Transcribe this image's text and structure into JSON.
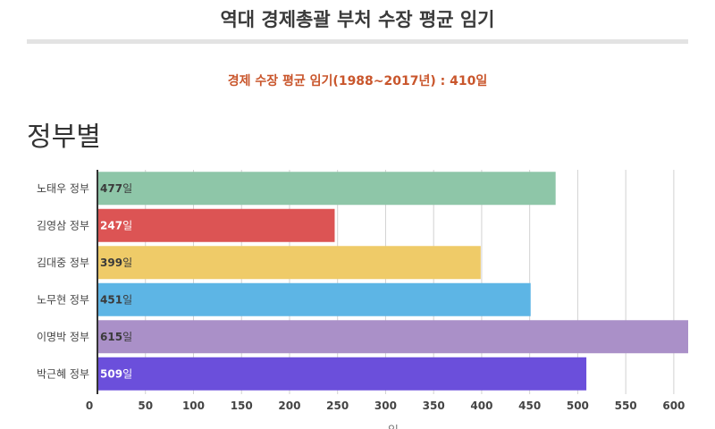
{
  "header": {
    "title": "역대 경제총괄 부처 수장 평균 임기",
    "average_note": "경제 수장 평균 임기(1988~2017년) : 410일",
    "section_title": "정부별"
  },
  "chart_data": {
    "type": "bar",
    "orientation": "horizontal",
    "categories": [
      "노태우 정부",
      "김영삼 정부",
      "김대중 정부",
      "노무현 정부",
      "이명박 정부",
      "박근혜 정부"
    ],
    "values": [
      477,
      247,
      399,
      451,
      615,
      509
    ],
    "value_suffix": "일",
    "colors": [
      "#8ec6a8",
      "#dc5454",
      "#efcb68",
      "#5db5e5",
      "#aa90c8",
      "#6b4fdb"
    ],
    "label_colors": [
      "#3a3a3a",
      "#ffffff",
      "#3a3a3a",
      "#3a3a3a",
      "#3a3a3a",
      "#ffffff"
    ],
    "xlabel": "일",
    "xlim": [
      0,
      615
    ],
    "xticks": [
      0,
      50,
      100,
      150,
      200,
      250,
      300,
      350,
      400,
      450,
      500,
      550,
      600
    ],
    "grid": true
  }
}
